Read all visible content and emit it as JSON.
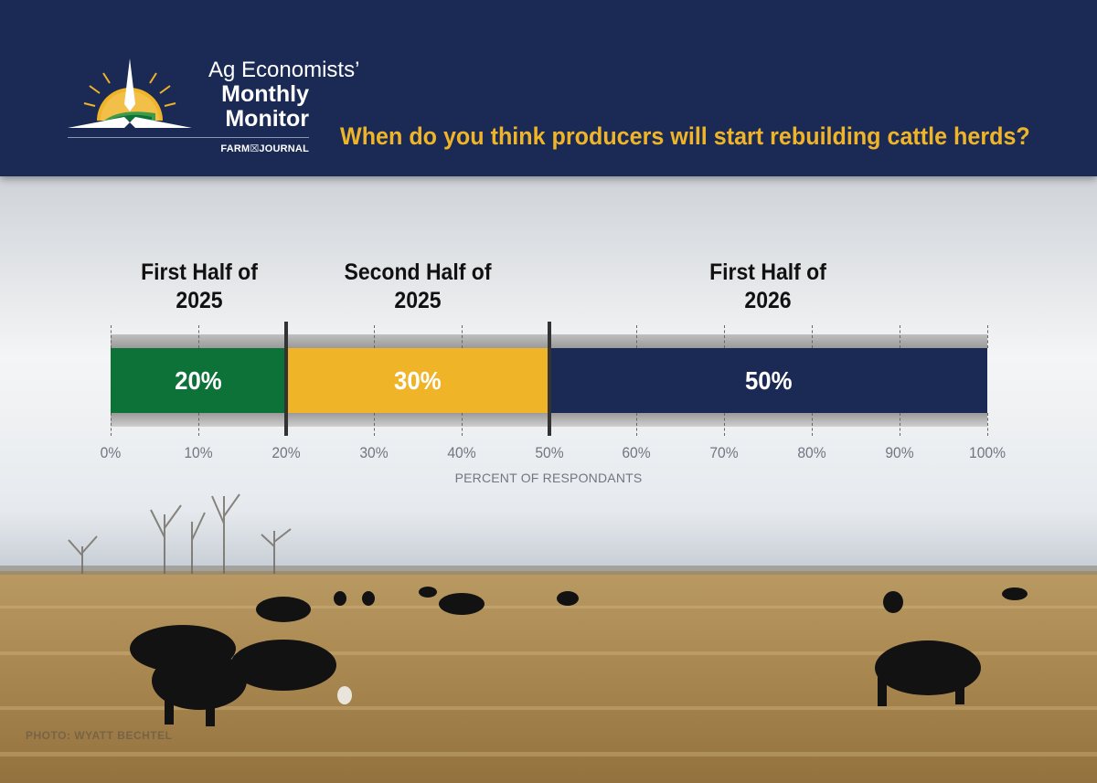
{
  "header": {
    "logo_line1": "Ag Economists’",
    "logo_line2": "Monthly",
    "logo_line3": "Monitor",
    "publisher": "FARM☒JOURNAL",
    "question": "When do you think producers will start rebuilding cattle herds?"
  },
  "photo_credit": "PHOTO: WYATT BECHTEL",
  "colors": {
    "header_bg": "#1b2a55",
    "question_text": "#f0b429",
    "green": "#0c7238",
    "gold": "#f0b429",
    "navy": "#1b2a55"
  },
  "chart_data": {
    "type": "bar",
    "orientation": "horizontal",
    "stacked": true,
    "title": "When do you think producers will start rebuilding cattle herds?",
    "xlabel": "PERCENT OF RESPONDANTS",
    "xlim": [
      0,
      100
    ],
    "ticks": [
      "0%",
      "10%",
      "20%",
      "30%",
      "40%",
      "50%",
      "60%",
      "70%",
      "80%",
      "90%",
      "100%"
    ],
    "tick_values": [
      0,
      10,
      20,
      30,
      40,
      50,
      60,
      70,
      80,
      90,
      100
    ],
    "grid": true,
    "categories": [
      "First Half of\n2025",
      "Second Half of\n2025",
      "First Half of\n2026"
    ],
    "values": [
      20,
      30,
      50
    ],
    "data_labels": [
      "20%",
      "30%",
      "50%"
    ],
    "segment_colors": [
      "#0c7238",
      "#f0b429",
      "#1b2a55"
    ]
  }
}
